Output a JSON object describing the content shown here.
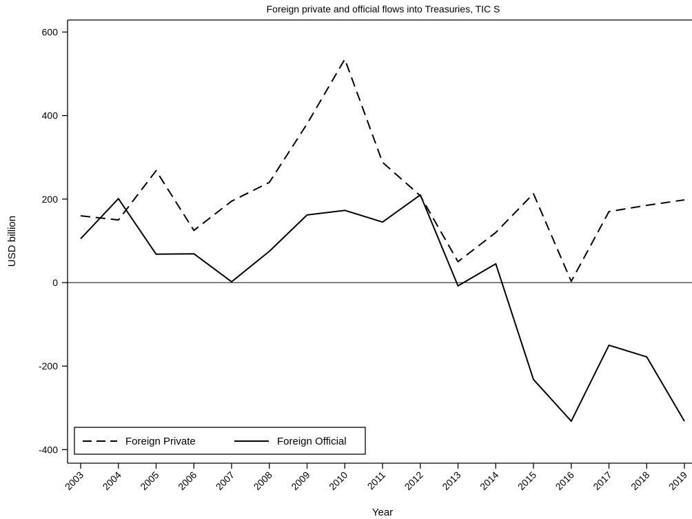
{
  "chart_data": {
    "type": "line",
    "title": "Foreign private and official flows into Treasuries, TIC S",
    "xlabel": "Year",
    "ylabel": "USD billion",
    "categories": [
      "2003",
      "2004",
      "2005",
      "2006",
      "2007",
      "2008",
      "2009",
      "2010",
      "2011",
      "2012",
      "2013",
      "2014",
      "2015",
      "2016",
      "2017",
      "2018",
      "2019"
    ],
    "ylim": [
      -430,
      630
    ],
    "yticks": [
      -400,
      -200,
      0,
      200,
      400,
      600
    ],
    "ytick_labels": [
      "-400",
      "-200",
      "0",
      "200",
      "400",
      "600"
    ],
    "zero_line": true,
    "grid": false,
    "legend_position": "bottom-left",
    "series": [
      {
        "name": "Foreign Private",
        "style": "dashed",
        "color": "#000000",
        "values": [
          160,
          150,
          268,
          125,
          195,
          240,
          380,
          535,
          288,
          208,
          50,
          120,
          213,
          3,
          170,
          185,
          198
        ]
      },
      {
        "name": "Foreign Official",
        "style": "solid",
        "color": "#000000",
        "values": [
          105,
          201,
          68,
          69,
          2,
          75,
          162,
          173,
          145,
          210,
          -8,
          45,
          -232,
          -332,
          -150,
          -178,
          -332
        ]
      }
    ]
  }
}
